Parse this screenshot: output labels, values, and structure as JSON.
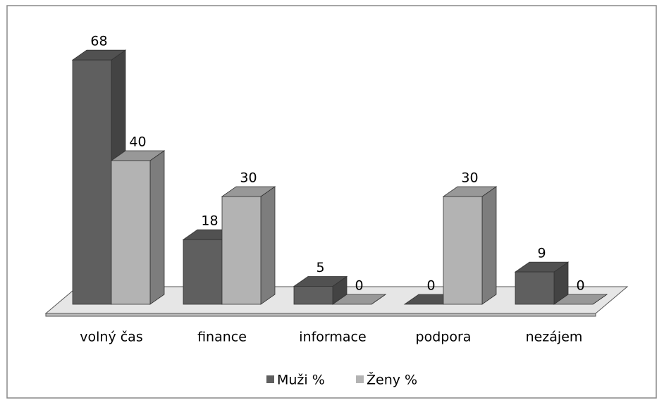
{
  "chart_data": {
    "type": "bar3d",
    "categories": [
      "volný čas",
      "finance",
      "informace",
      "podpora",
      "nezájem"
    ],
    "series": [
      {
        "name": "Muži %",
        "color": "#5f5f5f",
        "values": [
          68,
          18,
          5,
          0,
          9
        ]
      },
      {
        "name": "Ženy %",
        "color": "#b3b3b3",
        "values": [
          40,
          30,
          0,
          30,
          0
        ]
      }
    ],
    "legend": "bottom"
  }
}
